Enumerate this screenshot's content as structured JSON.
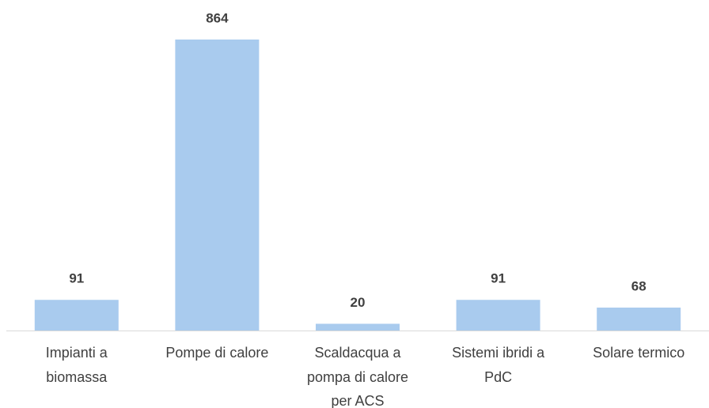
{
  "chart_data": {
    "type": "bar",
    "categories": [
      "Impianti a biomassa",
      "Pompe di calore",
      "Scaldacqua a pompa di calore per ACS",
      "Sistemi ibridi a PdC",
      "Solare termico"
    ],
    "values": [
      91,
      864,
      20,
      91,
      68
    ],
    "color": "#a9cbee"
  }
}
